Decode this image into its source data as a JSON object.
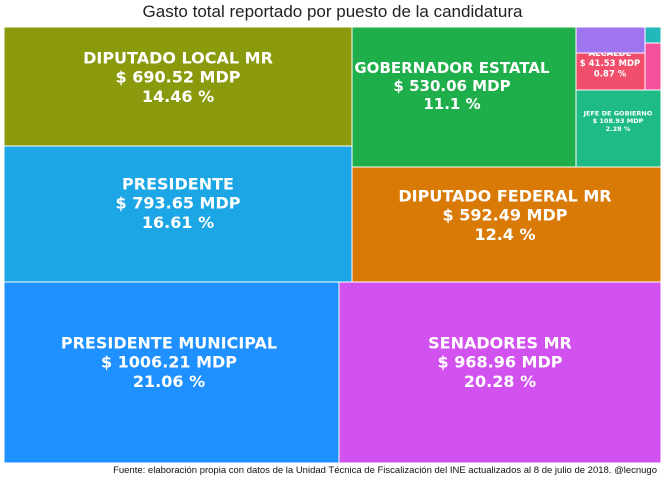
{
  "title": "Gasto total reportado por puesto de la candidatura",
  "footer": "Fuente: elaboración propia con datos de la Unidad Técnica de Fiscalización del INE actualizados al 8 de julio de 2018. @lecnugo",
  "chart_data": {
    "type": "treemap",
    "title": "Gasto total reportado por puesto de la candidatura",
    "unit": "MDP",
    "items": [
      {
        "name": "PRESIDENTE MUNICIPAL",
        "value_text": "$ 1006.21 MDP",
        "pct_text": "21.06 %",
        "value": 1006.21,
        "pct": 21.06,
        "color": "#1E90FF"
      },
      {
        "name": "SENADORES MR",
        "value_text": "$ 968.96 MDP",
        "pct_text": "20.28 %",
        "value": 968.96,
        "pct": 20.28,
        "color": "#D252F0"
      },
      {
        "name": "PRESIDENTE",
        "value_text": "$ 793.65 MDP",
        "pct_text": "16.61 %",
        "value": 793.65,
        "pct": 16.61,
        "color": "#1CA6E6"
      },
      {
        "name": "DIPUTADO LOCAL MR",
        "value_text": "$ 690.52 MDP",
        "pct_text": "14.46 %",
        "value": 690.52,
        "pct": 14.46,
        "color": "#8B9A0C"
      },
      {
        "name": "DIPUTADO FEDERAL MR",
        "value_text": "$ 592.49 MDP",
        "pct_text": "12.4 %",
        "value": 592.49,
        "pct": 12.4,
        "color": "#DA7A06"
      },
      {
        "name": "GOBERNADOR ESTATAL",
        "value_text": "$ 530.06 MDP",
        "pct_text": "11.1 %",
        "value": 530.06,
        "pct": 11.1,
        "color": "#1FAF4A"
      },
      {
        "name": "JEFE DE GOBIERNO",
        "value_text": "$ 108.93 MDP",
        "pct_text": "2.28 %",
        "value": 108.93,
        "pct": 2.28,
        "color": "#1EBB86"
      },
      {
        "name": "ALCALDE",
        "value_text": "$ 41.53 MDP",
        "pct_text": "0.87 %",
        "value": 41.53,
        "pct": 0.87,
        "color": "#F04E6A"
      },
      {
        "name": "",
        "value_text": "",
        "pct_text": "",
        "value": null,
        "pct": null,
        "color": "#9E75EE"
      },
      {
        "name": "",
        "value_text": "",
        "pct_text": "",
        "value": null,
        "pct": null,
        "color": "#F5529E"
      },
      {
        "name": "",
        "value_text": "",
        "pct_text": "",
        "value": null,
        "pct": null,
        "color": "#21B9B9"
      }
    ]
  }
}
